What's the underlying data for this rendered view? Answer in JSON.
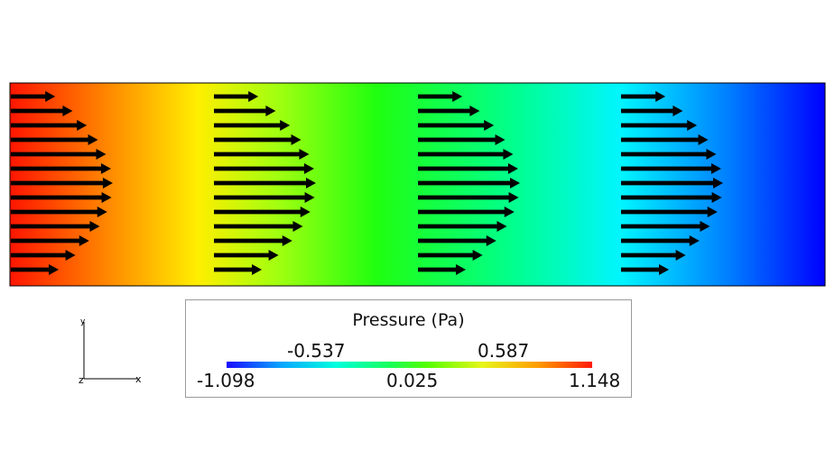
{
  "legend": {
    "title": "Pressure (Pa)",
    "min_label": "-1.098",
    "q1_label": "-0.537",
    "mid_label": "0.025",
    "q3_label": "0.587",
    "max_label": "1.148"
  },
  "axes_triad": {
    "y_label": "y",
    "x_label": "x",
    "z_label": "z"
  },
  "colormap": {
    "high": "#ff0000",
    "mid_high": "#ffee00",
    "mid": "#22ff11",
    "mid_low": "#00ffee",
    "low": "#0000ff"
  }
}
